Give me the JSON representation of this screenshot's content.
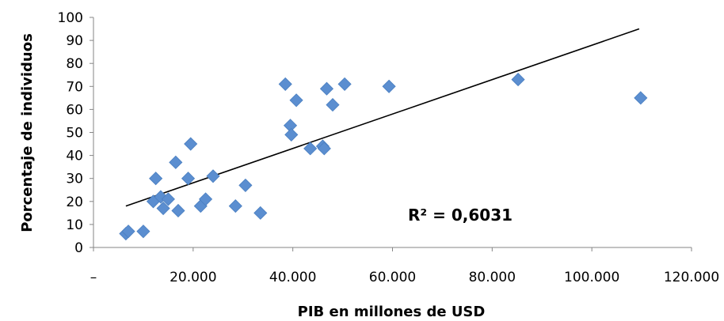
{
  "chart_data": {
    "type": "scatter",
    "title": "",
    "xlabel": "PIB en  millones de USD",
    "ylabel": "Porcentaje de individuos",
    "xlim": [
      0,
      120000
    ],
    "ylim": [
      0,
      100
    ],
    "x_ticks": [
      0,
      20000,
      40000,
      60000,
      80000,
      100000,
      120000
    ],
    "x_tick_labels": [
      "–",
      "20.000",
      "40.000",
      "60.000",
      "80.000",
      "100.000",
      "120.000"
    ],
    "y_ticks": [
      0,
      10,
      20,
      30,
      40,
      50,
      60,
      70,
      80,
      90,
      100
    ],
    "y_tick_labels": [
      "0",
      "10",
      "20",
      "30",
      "40",
      "50",
      "60",
      "70",
      "80",
      "90",
      "100"
    ],
    "grid": false,
    "legend": "none",
    "marker": "diamond",
    "marker_color": "#5b8ed0",
    "series": [
      {
        "points": [
          [
            6500,
            6
          ],
          [
            7000,
            7
          ],
          [
            10000,
            7
          ],
          [
            12000,
            20
          ],
          [
            12500,
            30
          ],
          [
            13500,
            22
          ],
          [
            14000,
            17
          ],
          [
            15000,
            21
          ],
          [
            16500,
            37
          ],
          [
            17000,
            16
          ],
          [
            19000,
            30
          ],
          [
            19500,
            45
          ],
          [
            21500,
            18
          ],
          [
            22500,
            21
          ],
          [
            24000,
            31
          ],
          [
            28500,
            18
          ],
          [
            30500,
            27
          ],
          [
            33500,
            15
          ],
          [
            38500,
            71
          ],
          [
            39500,
            53
          ],
          [
            39700,
            49
          ],
          [
            40700,
            64
          ],
          [
            43500,
            43
          ],
          [
            46000,
            44
          ],
          [
            46300,
            43
          ],
          [
            46800,
            69
          ],
          [
            48000,
            62
          ],
          [
            50400,
            71
          ],
          [
            59300,
            70
          ],
          [
            85200,
            73
          ],
          [
            109800,
            65
          ]
        ]
      }
    ],
    "trendline": {
      "type": "linear",
      "x_range": [
        6500,
        109500
      ],
      "y_range": [
        18,
        95
      ],
      "color": "#000000",
      "annotation": "R² = 0,6031"
    }
  }
}
